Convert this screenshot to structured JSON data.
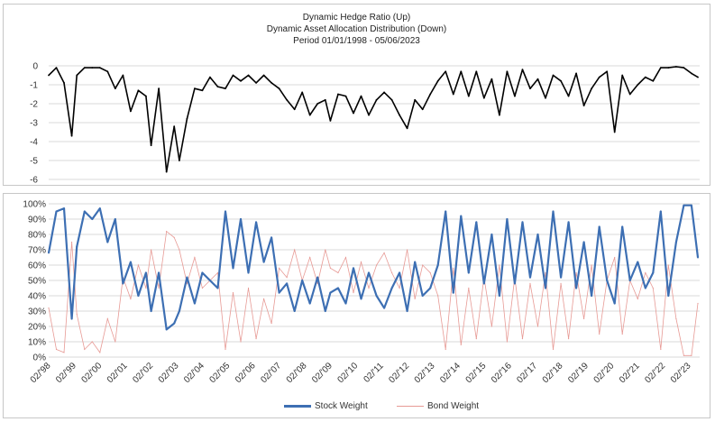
{
  "titles": {
    "line1": "Dynamic Hedge Ratio (Up)",
    "line2": "Dynamic Asset Allocation Distribution (Down)",
    "line3": "Period 01/01/1998 - 05/06/2023"
  },
  "colors": {
    "hedge": "#000000",
    "stock": "#3d6fb3",
    "bond": "#e79a95",
    "grid": "#d9d9d9"
  },
  "legend": {
    "stock": "Stock Weight",
    "bond": "Bond Weight"
  },
  "chart_data": [
    {
      "type": "line",
      "title": "Dynamic Hedge Ratio (Up)",
      "xlabel": "",
      "ylabel": "",
      "ylim": [
        -6,
        0
      ],
      "yticks": [
        0,
        -1,
        -2,
        -3,
        -4,
        -5,
        -6
      ],
      "ytick_labels": [
        "0",
        "-1",
        "-2",
        "-3",
        "-4",
        "-5",
        "-6"
      ],
      "grid": true,
      "x": [
        1998.0,
        1998.3,
        1998.6,
        1998.9,
        1999.1,
        1999.4,
        1999.7,
        2000.0,
        2000.3,
        2000.6,
        2000.9,
        2001.2,
        2001.5,
        2001.8,
        2002.0,
        2002.3,
        2002.6,
        2002.9,
        2003.1,
        2003.4,
        2003.7,
        2004.0,
        2004.3,
        2004.6,
        2004.9,
        2005.2,
        2005.5,
        2005.8,
        2006.1,
        2006.4,
        2006.7,
        2007.0,
        2007.3,
        2007.6,
        2007.9,
        2008.2,
        2008.5,
        2008.8,
        2009.0,
        2009.3,
        2009.6,
        2009.9,
        2010.2,
        2010.5,
        2010.8,
        2011.1,
        2011.4,
        2011.7,
        2012.0,
        2012.3,
        2012.6,
        2012.9,
        2013.2,
        2013.5,
        2013.8,
        2014.1,
        2014.4,
        2014.7,
        2015.0,
        2015.3,
        2015.6,
        2015.9,
        2016.2,
        2016.5,
        2016.8,
        2017.1,
        2017.4,
        2017.7,
        2018.0,
        2018.3,
        2018.6,
        2018.9,
        2019.2,
        2019.5,
        2019.8,
        2020.1,
        2020.4,
        2020.7,
        2021.0,
        2021.3,
        2021.6,
        2021.9,
        2022.2,
        2022.5,
        2022.8,
        2023.1,
        2023.35
      ],
      "series": [
        {
          "values": [
            -0.5,
            -0.1,
            -0.9,
            -3.7,
            -0.5,
            -0.1,
            -0.1,
            -0.1,
            -0.3,
            -1.2,
            -0.5,
            -2.4,
            -1.3,
            -1.6,
            -4.2,
            -1.2,
            -5.6,
            -3.2,
            -5.0,
            -2.8,
            -1.2,
            -1.3,
            -0.6,
            -1.1,
            -1.2,
            -0.5,
            -0.8,
            -0.5,
            -0.9,
            -0.5,
            -0.9,
            -1.2,
            -1.8,
            -2.3,
            -1.4,
            -2.6,
            -2.0,
            -1.8,
            -2.9,
            -1.5,
            -1.6,
            -2.5,
            -1.6,
            -2.6,
            -1.8,
            -1.4,
            -1.8,
            -2.6,
            -3.3,
            -1.8,
            -2.3,
            -1.5,
            -0.8,
            -0.3,
            -1.5,
            -0.3,
            -1.6,
            -0.3,
            -1.7,
            -0.7,
            -2.6,
            -0.3,
            -1.6,
            -0.2,
            -1.2,
            -0.7,
            -1.7,
            -0.5,
            -0.8,
            -1.6,
            -0.4,
            -2.1,
            -1.2,
            -0.6,
            -0.3,
            -3.5,
            -0.5,
            -1.5,
            -1.0,
            -0.6,
            -0.8,
            -0.1,
            -0.1,
            -0.05,
            -0.1,
            -0.4,
            -0.6
          ]
        }
      ]
    },
    {
      "type": "line",
      "title": "Dynamic Asset Allocation Distribution (Down)",
      "xlabel": "",
      "ylabel": "",
      "ylim": [
        0,
        100
      ],
      "yticks": [
        0,
        10,
        20,
        30,
        40,
        50,
        60,
        70,
        80,
        90,
        100
      ],
      "ytick_labels": [
        "0%",
        "10%",
        "20%",
        "30%",
        "40%",
        "50%",
        "60%",
        "70%",
        "80%",
        "90%",
        "100%"
      ],
      "categories": [
        "02/'98",
        "02/'99",
        "02/'00",
        "02/'01",
        "02/'02",
        "02/'03",
        "02/'04",
        "02/'05",
        "02/'06",
        "02/'07",
        "02/'08",
        "02/'09",
        "02/'10",
        "02/'11",
        "02/'12",
        "02/'13",
        "02/'14",
        "02/'15",
        "02/'16",
        "02/'17",
        "02/'18",
        "02/'19",
        "02/'20",
        "02/'21",
        "02/'22",
        "02/'23"
      ],
      "grid": true,
      "legend_position": "bottom",
      "x": [
        1998.0,
        1998.3,
        1998.6,
        1998.9,
        1999.1,
        1999.4,
        1999.7,
        2000.0,
        2000.3,
        2000.6,
        2000.9,
        2001.2,
        2001.5,
        2001.8,
        2002.0,
        2002.3,
        2002.6,
        2002.9,
        2003.1,
        2003.4,
        2003.7,
        2004.0,
        2004.3,
        2004.6,
        2004.9,
        2005.2,
        2005.5,
        2005.8,
        2006.1,
        2006.4,
        2006.7,
        2007.0,
        2007.3,
        2007.6,
        2007.9,
        2008.2,
        2008.5,
        2008.8,
        2009.0,
        2009.3,
        2009.6,
        2009.9,
        2010.2,
        2010.5,
        2010.8,
        2011.1,
        2011.4,
        2011.7,
        2012.0,
        2012.3,
        2012.6,
        2012.9,
        2013.2,
        2013.5,
        2013.8,
        2014.1,
        2014.4,
        2014.7,
        2015.0,
        2015.3,
        2015.6,
        2015.9,
        2016.2,
        2016.5,
        2016.8,
        2017.1,
        2017.4,
        2017.7,
        2018.0,
        2018.3,
        2018.6,
        2018.9,
        2019.2,
        2019.5,
        2019.8,
        2020.1,
        2020.4,
        2020.7,
        2021.0,
        2021.3,
        2021.6,
        2021.9,
        2022.2,
        2022.5,
        2022.8,
        2023.1,
        2023.35
      ],
      "series": [
        {
          "name": "Stock Weight",
          "values": [
            68,
            95,
            97,
            25,
            72,
            95,
            90,
            97,
            75,
            90,
            48,
            62,
            40,
            55,
            30,
            55,
            18,
            22,
            30,
            52,
            35,
            55,
            50,
            45,
            95,
            58,
            90,
            55,
            88,
            62,
            78,
            42,
            48,
            30,
            50,
            35,
            52,
            30,
            42,
            45,
            35,
            58,
            38,
            55,
            40,
            32,
            45,
            55,
            30,
            62,
            40,
            45,
            60,
            95,
            42,
            92,
            55,
            88,
            48,
            80,
            40,
            90,
            48,
            88,
            52,
            80,
            45,
            95,
            52,
            88,
            45,
            75,
            40,
            85,
            50,
            35,
            85,
            50,
            62,
            45,
            55,
            95,
            40,
            75,
            99,
            99,
            65
          ]
        },
        {
          "name": "Bond Weight",
          "values": [
            32,
            5,
            3,
            75,
            28,
            5,
            10,
            3,
            25,
            10,
            52,
            38,
            60,
            45,
            70,
            45,
            82,
            78,
            70,
            48,
            65,
            45,
            50,
            55,
            5,
            42,
            10,
            45,
            12,
            38,
            22,
            58,
            52,
            70,
            50,
            65,
            48,
            70,
            58,
            55,
            65,
            42,
            62,
            45,
            60,
            68,
            55,
            45,
            70,
            38,
            60,
            55,
            40,
            5,
            58,
            8,
            45,
            12,
            52,
            20,
            60,
            10,
            52,
            12,
            48,
            20,
            55,
            5,
            48,
            12,
            55,
            25,
            60,
            15,
            50,
            65,
            15,
            50,
            38,
            55,
            45,
            5,
            60,
            25,
            1,
            1,
            35
          ]
        }
      ]
    }
  ]
}
